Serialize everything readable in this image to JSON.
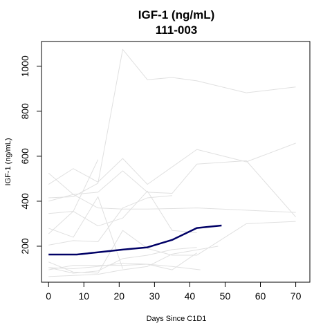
{
  "chart_data": {
    "type": "line",
    "title": "IGF-1 (ng/mL)",
    "subtitle": "111-003",
    "xlabel": "Days Since C1D1",
    "ylabel": "IGF-1 (ng/mL)",
    "xlim": [
      -2,
      74
    ],
    "ylim": [
      40,
      1110
    ],
    "xticks": [
      0,
      10,
      20,
      30,
      40,
      50,
      60,
      70
    ],
    "yticks": [
      200,
      400,
      600,
      800,
      1000
    ],
    "grid": false,
    "legend": "none",
    "colors": {
      "background": "#e0e0e0",
      "highlight": "#000066",
      "axis": "#000000"
    },
    "highlight_series": {
      "name": "111-003",
      "x": [
        0,
        8,
        14,
        21,
        28,
        35,
        42,
        49
      ],
      "y": [
        163,
        163,
        173,
        185,
        195,
        228,
        281,
        292
      ]
    },
    "background_series": [
      {
        "x": [
          0,
          7,
          14,
          21,
          28,
          35,
          42,
          56,
          70
        ],
        "y": [
          415,
          420,
          480,
          1075,
          940,
          950,
          935,
          882,
          908
        ]
      },
      {
        "x": [
          0,
          7,
          14,
          21,
          28,
          42,
          56,
          70
        ],
        "y": [
          525,
          430,
          370,
          365,
          365,
          370,
          360,
          350
        ]
      },
      {
        "x": [
          0,
          7,
          14,
          21,
          28,
          42,
          56,
          70
        ],
        "y": [
          475,
          545,
          485,
          590,
          475,
          630,
          575,
          658
        ]
      },
      {
        "x": [
          0,
          7,
          14,
          21,
          28,
          35,
          42,
          56,
          70
        ],
        "y": [
          400,
          430,
          440,
          535,
          440,
          435,
          565,
          580,
          330
        ]
      },
      {
        "x": [
          0,
          7,
          14
        ],
        "y": [
          345,
          355,
          585
        ]
      },
      {
        "x": [
          0,
          7,
          14,
          21,
          28,
          35
        ],
        "y": [
          205,
          225,
          220,
          370,
          415,
          425
        ]
      },
      {
        "x": [
          0,
          7,
          14,
          21
        ],
        "y": [
          280,
          240,
          420,
          100
        ]
      },
      {
        "x": [
          0,
          7,
          14,
          21,
          28,
          35,
          42
        ],
        "y": [
          255,
          355,
          290,
          325,
          445,
          270,
          260
        ]
      },
      {
        "x": [
          0,
          7,
          14,
          21,
          28,
          35,
          42,
          56,
          70
        ],
        "y": [
          130,
          85,
          80,
          270,
          190,
          160,
          160,
          300,
          310
        ]
      },
      {
        "x": [
          0,
          7,
          14,
          21,
          28,
          35,
          42
        ],
        "y": [
          105,
          80,
          90,
          145,
          160,
          185,
          195
        ]
      },
      {
        "x": [
          0,
          7,
          14,
          21,
          28,
          35,
          42
        ],
        "y": [
          95,
          115,
          115,
          115,
          120,
          95,
          170
        ]
      },
      {
        "x": [
          0,
          7,
          14,
          21,
          28,
          35,
          48
        ],
        "y": [
          65,
          70,
          75,
          95,
          110,
          165,
          200
        ]
      },
      {
        "x": [
          0,
          7,
          14,
          21,
          28,
          35,
          43
        ],
        "y": [
          105,
          100,
          110,
          125,
          120,
          110,
          95
        ]
      }
    ]
  }
}
